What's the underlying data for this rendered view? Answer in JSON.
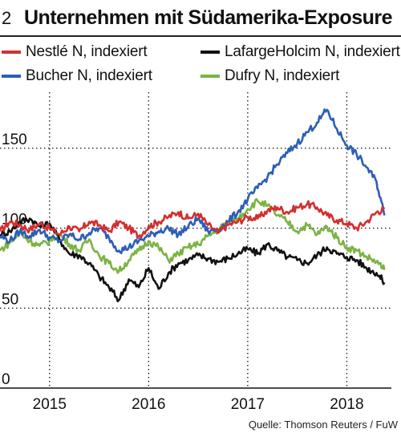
{
  "figure": {
    "number": "2",
    "title": "Unternehmen mit Südamerika-Exposure",
    "source": "Quelle: Thomson Reuters / FuW"
  },
  "legend": [
    {
      "label": "Nestlé N, indexiert",
      "color": "#d32f2f"
    },
    {
      "label": "LafargeHolcim N, indexiert",
      "color": "#111111"
    },
    {
      "label": "Bucher N, indexiert",
      "color": "#2c5fb5"
    },
    {
      "label": "Dufry N, indexiert",
      "color": "#7cb342"
    }
  ],
  "chart_data": {
    "type": "line",
    "title": "Unternehmen mit Südamerika-Exposure",
    "xlabel": "",
    "ylabel": "",
    "xlim": [
      2014.5,
      2018.45
    ],
    "ylim": [
      0,
      185
    ],
    "y_ticks": [
      0,
      50,
      100,
      150
    ],
    "y_tick_labels": [
      "0",
      "50",
      "100",
      "150"
    ],
    "x_ticks": [
      2015,
      2016,
      2017,
      2018
    ],
    "x_tick_labels": [
      "2015",
      "2016",
      "2017",
      "2018"
    ],
    "grid": "dotted",
    "legend_position": "top",
    "series": [
      {
        "name": "Nestlé N, indexiert",
        "color": "#d32f2f",
        "x": [
          2014.5,
          2014.6,
          2014.7,
          2014.8,
          2014.9,
          2015.0,
          2015.1,
          2015.2,
          2015.3,
          2015.4,
          2015.5,
          2015.6,
          2015.7,
          2015.8,
          2015.9,
          2016.0,
          2016.1,
          2016.2,
          2016.3,
          2016.4,
          2016.5,
          2016.6,
          2016.7,
          2016.8,
          2016.9,
          2017.0,
          2017.1,
          2017.2,
          2017.3,
          2017.4,
          2017.5,
          2017.6,
          2017.7,
          2017.8,
          2017.9,
          2018.0,
          2018.1,
          2018.2,
          2018.3,
          2018.38
        ],
        "y": [
          98,
          104,
          102,
          99,
          103,
          100,
          96,
          101,
          98,
          104,
          102,
          98,
          104,
          100,
          95,
          101,
          104,
          107,
          110,
          106,
          109,
          102,
          97,
          102,
          104,
          107,
          106,
          111,
          113,
          110,
          113,
          115,
          113,
          108,
          105,
          103,
          100,
          104,
          110,
          112
        ]
      },
      {
        "name": "LafargeHolcim N, indexiert",
        "color": "#111111",
        "x": [
          2014.5,
          2014.6,
          2014.7,
          2014.8,
          2014.9,
          2015.0,
          2015.1,
          2015.2,
          2015.3,
          2015.4,
          2015.5,
          2015.6,
          2015.7,
          2015.8,
          2015.9,
          2016.0,
          2016.1,
          2016.2,
          2016.3,
          2016.4,
          2016.5,
          2016.6,
          2016.7,
          2016.8,
          2016.9,
          2017.0,
          2017.1,
          2017.2,
          2017.3,
          2017.4,
          2017.5,
          2017.6,
          2017.7,
          2017.8,
          2017.9,
          2018.0,
          2018.1,
          2018.2,
          2018.3,
          2018.38
        ],
        "y": [
          96,
          98,
          104,
          106,
          101,
          103,
          93,
          84,
          83,
          78,
          70,
          63,
          55,
          68,
          63,
          75,
          62,
          72,
          78,
          80,
          83,
          81,
          79,
          81,
          84,
          87,
          84,
          90,
          86,
          82,
          80,
          78,
          83,
          88,
          84,
          82,
          80,
          75,
          72,
          66
        ]
      },
      {
        "name": "Bucher N, indexiert",
        "color": "#2c5fb5",
        "x": [
          2014.5,
          2014.6,
          2014.7,
          2014.8,
          2014.9,
          2015.0,
          2015.1,
          2015.2,
          2015.3,
          2015.4,
          2015.5,
          2015.6,
          2015.7,
          2015.8,
          2015.9,
          2016.0,
          2016.1,
          2016.2,
          2016.3,
          2016.4,
          2016.5,
          2016.6,
          2016.7,
          2016.8,
          2016.9,
          2017.0,
          2017.1,
          2017.2,
          2017.3,
          2017.4,
          2017.5,
          2017.6,
          2017.7,
          2017.8,
          2017.9,
          2018.0,
          2018.1,
          2018.2,
          2018.3,
          2018.38
        ],
        "y": [
          95,
          92,
          98,
          95,
          99,
          94,
          92,
          96,
          93,
          97,
          100,
          94,
          86,
          88,
          92,
          95,
          98,
          100,
          96,
          101,
          106,
          98,
          99,
          104,
          110,
          118,
          125,
          132,
          140,
          147,
          153,
          160,
          166,
          174,
          162,
          152,
          146,
          138,
          129,
          108
        ]
      },
      {
        "name": "Dufry N, indexiert",
        "color": "#7cb342",
        "x": [
          2014.5,
          2014.6,
          2014.7,
          2014.8,
          2014.9,
          2015.0,
          2015.1,
          2015.2,
          2015.3,
          2015.4,
          2015.5,
          2015.6,
          2015.7,
          2015.8,
          2015.9,
          2016.0,
          2016.1,
          2016.2,
          2016.3,
          2016.4,
          2016.5,
          2016.6,
          2016.7,
          2016.8,
          2016.9,
          2017.0,
          2017.1,
          2017.2,
          2017.3,
          2017.4,
          2017.5,
          2017.6,
          2017.7,
          2017.8,
          2017.9,
          2018.0,
          2018.1,
          2018.2,
          2018.3,
          2018.38
        ],
        "y": [
          86,
          91,
          97,
          92,
          89,
          92,
          96,
          90,
          86,
          93,
          83,
          78,
          73,
          80,
          86,
          92,
          88,
          80,
          84,
          88,
          90,
          95,
          99,
          104,
          106,
          112,
          117,
          114,
          108,
          104,
          98,
          102,
          96,
          101,
          94,
          88,
          86,
          82,
          79,
          74
        ]
      }
    ]
  }
}
